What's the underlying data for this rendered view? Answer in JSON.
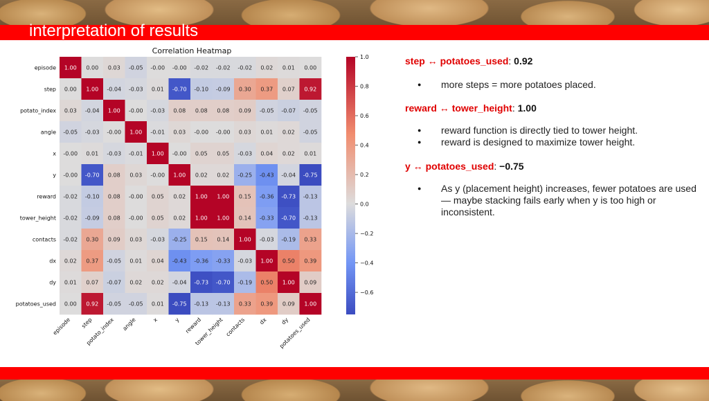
{
  "slide": {
    "title": "interpretation of results"
  },
  "notes": [
    {
      "var_a": "step",
      "var_b": "potatoes_used",
      "value": "0.92",
      "bullets": [
        "more steps = more potatoes placed."
      ]
    },
    {
      "var_a": "reward",
      "var_b": "tower_height",
      "value": "1.00",
      "bullets": [
        "reward function is directly tied to tower height.",
        "reward is designed to maximize tower height."
      ]
    },
    {
      "var_a": "y",
      "var_b": "potatoes_used",
      "value": "−0.75",
      "bullets": [
        "As y (placement height) increases, fewer potatoes are used — maybe stacking fails early when y is too high or inconsistent."
      ]
    }
  ],
  "colors": {
    "band": "#ff0000",
    "note_label": "#e00000",
    "cmap_low": "#3b4cc0",
    "cmap_mid": "#dddcdc",
    "cmap_high": "#b40426"
  },
  "chart_data": {
    "type": "heatmap",
    "title": "Correlation Heatmap",
    "labels": [
      "episode",
      "step",
      "potato_index",
      "angle",
      "x",
      "y",
      "reward",
      "tower_height",
      "contacts",
      "dx",
      "dy",
      "potatoes_used"
    ],
    "matrix": [
      [
        1.0,
        0.0,
        0.03,
        -0.05,
        -0.0,
        -0.0,
        -0.02,
        -0.02,
        -0.02,
        0.02,
        0.01,
        0.0
      ],
      [
        0.0,
        1.0,
        -0.04,
        -0.03,
        0.01,
        -0.7,
        -0.1,
        -0.09,
        0.3,
        0.37,
        0.07,
        0.92
      ],
      [
        0.03,
        -0.04,
        1.0,
        -0.0,
        -0.03,
        0.08,
        0.08,
        0.08,
        0.09,
        -0.05,
        -0.07,
        -0.05
      ],
      [
        -0.05,
        -0.03,
        -0.0,
        1.0,
        -0.01,
        0.03,
        -0.0,
        -0.0,
        0.03,
        0.01,
        0.02,
        -0.05
      ],
      [
        -0.0,
        0.01,
        -0.03,
        -0.01,
        1.0,
        -0.0,
        0.05,
        0.05,
        -0.03,
        0.04,
        0.02,
        0.01
      ],
      [
        -0.0,
        -0.7,
        0.08,
        0.03,
        -0.0,
        1.0,
        0.02,
        0.02,
        -0.25,
        -0.43,
        -0.04,
        -0.75
      ],
      [
        -0.02,
        -0.1,
        0.08,
        -0.0,
        0.05,
        0.02,
        1.0,
        1.0,
        0.15,
        -0.36,
        -0.73,
        -0.13
      ],
      [
        -0.02,
        -0.09,
        0.08,
        -0.0,
        0.05,
        0.02,
        1.0,
        1.0,
        0.14,
        -0.33,
        -0.7,
        -0.13
      ],
      [
        -0.02,
        0.3,
        0.09,
        0.03,
        -0.03,
        -0.25,
        0.15,
        0.14,
        1.0,
        -0.03,
        -0.19,
        0.33
      ],
      [
        0.02,
        0.37,
        -0.05,
        0.01,
        0.04,
        -0.43,
        -0.36,
        -0.33,
        -0.03,
        1.0,
        0.5,
        0.39
      ],
      [
        0.01,
        0.07,
        -0.07,
        0.02,
        0.02,
        -0.04,
        -0.73,
        -0.7,
        -0.19,
        0.5,
        1.0,
        0.09
      ],
      [
        0.0,
        0.92,
        -0.05,
        -0.05,
        0.01,
        -0.75,
        -0.13,
        -0.13,
        0.33,
        0.39,
        0.09,
        1.0
      ]
    ],
    "colorbar": {
      "range": [
        -0.75,
        1.0
      ],
      "ticks": [
        "1.0",
        "0.8",
        "0.6",
        "0.4",
        "0.2",
        "0.0",
        "−0.2",
        "−0.4",
        "−0.6"
      ]
    }
  }
}
